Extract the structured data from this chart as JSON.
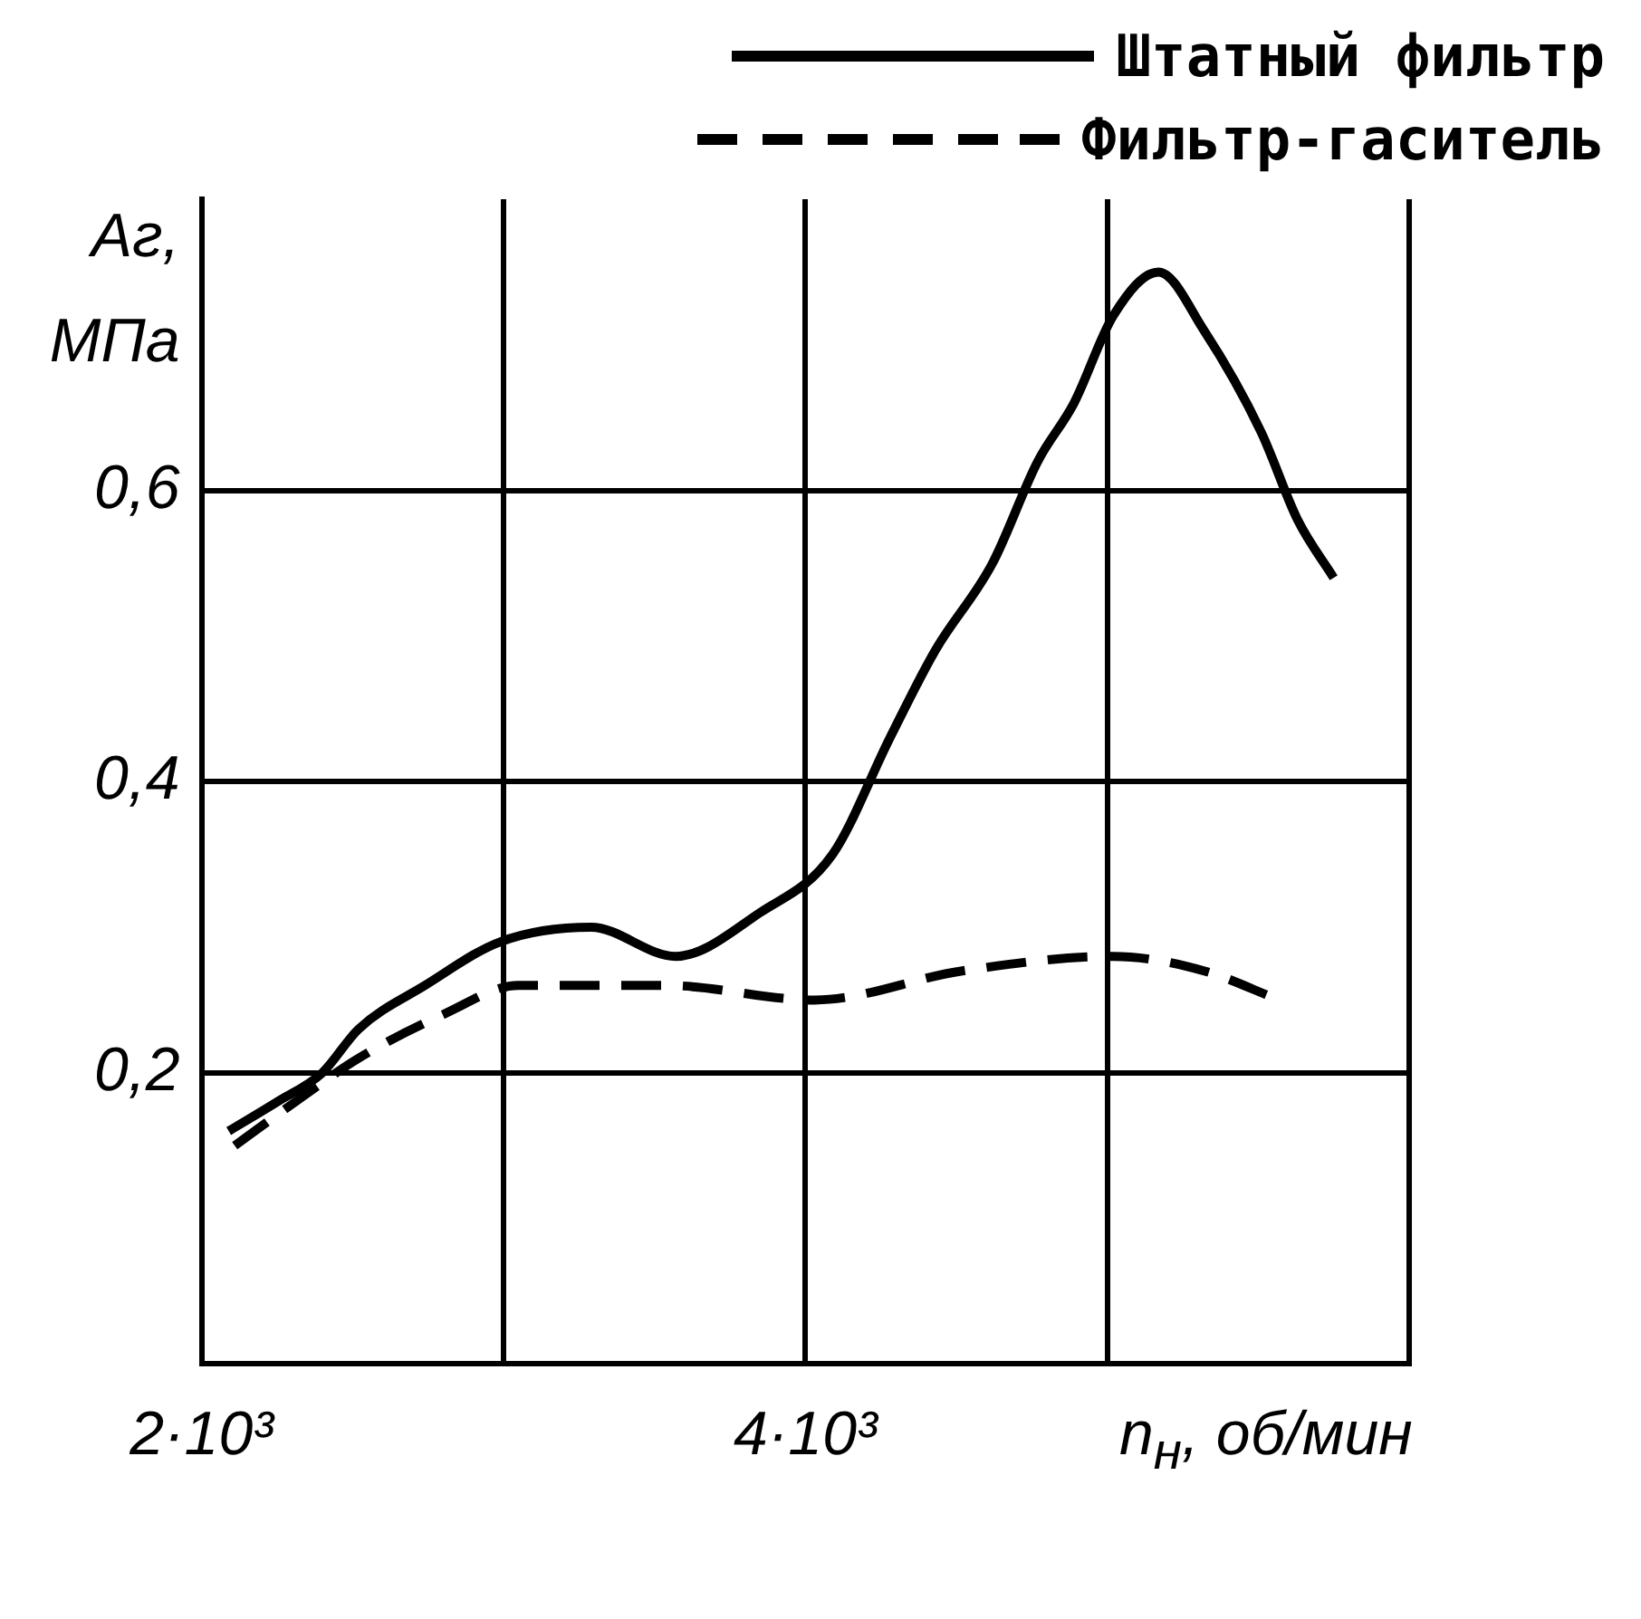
{
  "chart_data": {
    "type": "line",
    "ylabel": "Aг, МПа",
    "xlabel": "n$_{н}$, об/мин",
    "xlim": [
      2000,
      6000
    ],
    "xticks": [
      {
        "value": 2000,
        "label": "2·10³"
      },
      {
        "value": 3000,
        "label": null
      },
      {
        "value": 4000,
        "label": "4·10³"
      },
      {
        "value": 5000,
        "label": null
      },
      {
        "value": 6000,
        "label": null
      }
    ],
    "ylim": [
      0,
      0.8
    ],
    "yticks": [
      {
        "value": 0.2,
        "label": "0,2"
      },
      {
        "value": 0.4,
        "label": "0,4"
      },
      {
        "value": 0.6,
        "label": "0,6"
      }
    ],
    "grid": true,
    "legend": "top right",
    "marker": "none",
    "series": [
      {
        "name": "Штатный фильтр",
        "color": "#000000",
        "line_style": "solid",
        "x": [
          2090,
          2250,
          2400,
          2520,
          2740,
          2990,
          3290,
          3570,
          3850,
          4090,
          4280,
          4430,
          4620,
          4770,
          4890,
          5020,
          5170,
          5320,
          5510,
          5630,
          5750
        ],
        "values": [
          0.16,
          0.18,
          0.2,
          0.23,
          0.26,
          0.29,
          0.3,
          0.28,
          0.31,
          0.35,
          0.43,
          0.49,
          0.55,
          0.62,
          0.66,
          0.72,
          0.75,
          0.71,
          0.64,
          0.58,
          0.54
        ]
      },
      {
        "name": "Фильтр-гаситель",
        "color": "#000000",
        "line_style": "dashed",
        "x": [
          2110,
          2310,
          2520,
          2800,
          3050,
          3540,
          4030,
          4520,
          5020,
          5320,
          5570
        ],
        "values": [
          0.15,
          0.18,
          0.21,
          0.24,
          0.26,
          0.26,
          0.25,
          0.27,
          0.28,
          0.27,
          0.25
        ]
      }
    ]
  }
}
